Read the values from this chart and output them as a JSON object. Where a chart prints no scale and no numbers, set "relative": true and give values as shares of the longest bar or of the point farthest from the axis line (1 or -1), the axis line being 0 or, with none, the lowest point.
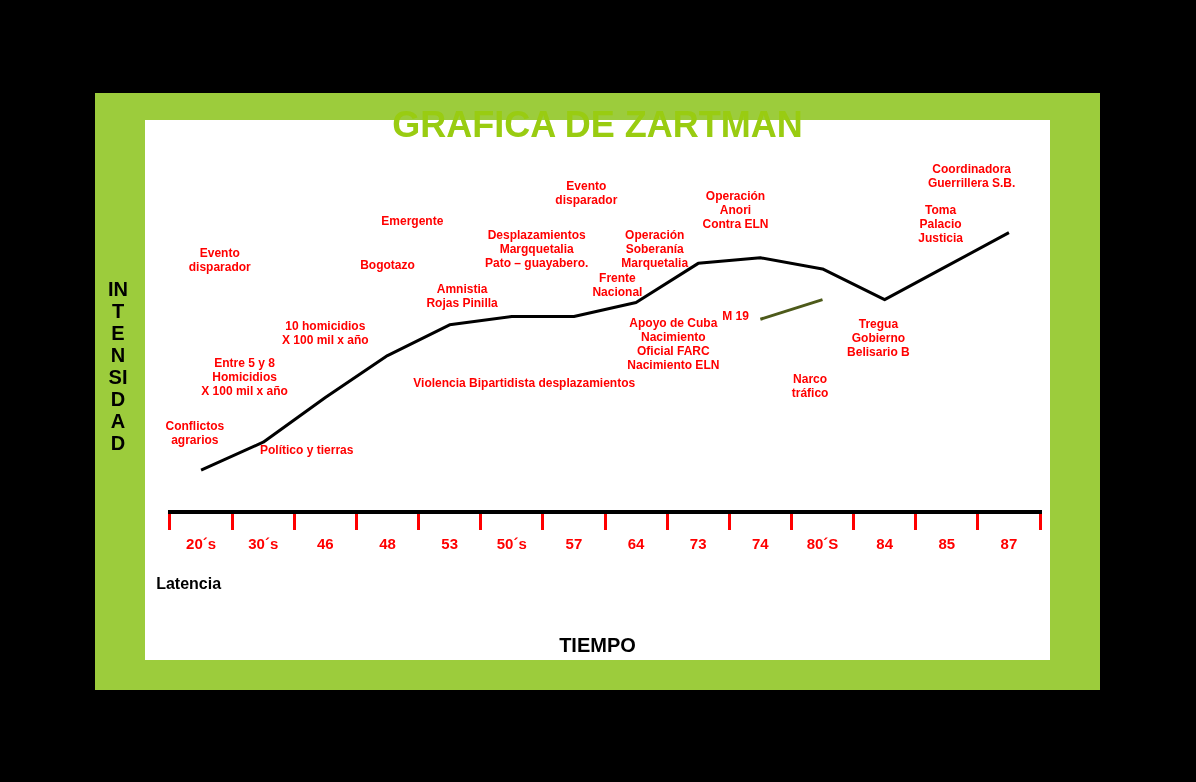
{
  "chart_data": {
    "type": "line",
    "title": "GRAFICA DE ZARTMAN",
    "xlabel": "TIEMPO",
    "ylabel": "INTENSIDAD",
    "relative": true,
    "legend": false,
    "grid": false,
    "marker": "none",
    "line_style": "solid",
    "categories": [
      "20´s",
      "30´s",
      "46",
      "48",
      "53",
      "50´s",
      "57",
      "64",
      "73",
      "74",
      "80´S",
      "84",
      "85",
      "87"
    ],
    "series": [
      {
        "color": "#000000",
        "values": [
          0.15,
          0.25,
          0.41,
          0.56,
          0.67,
          0.7,
          0.7,
          0.75,
          0.89,
          0.91,
          0.87,
          0.76,
          0.88,
          1.0
        ]
      },
      {
        "color": "#4d5a1a",
        "values": [
          null,
          null,
          null,
          null,
          null,
          null,
          null,
          null,
          null,
          0.69,
          0.76,
          null,
          null,
          null
        ]
      }
    ],
    "annotations": [
      "Latencia",
      "Conflictos\nagrarios",
      "Político y tierras",
      "Entre 5 y 8\nHomicidios\nX 100 mil x año",
      "10 homicidios\nX 100 mil x año",
      "Bogotazo",
      "Evento\ndisparador",
      "Amnistia\nRojas Pinilla",
      "Violencia Bipartidista desplazamientos",
      "Desplazamientos\nMargquetalia\nPato – guayabero.",
      "Emergente",
      "Evento\ndisparador",
      "Frente\nNacional",
      "Apoyo de Cuba\nNacimiento\nOficial FARC\nNacimiento ELN",
      "Operación\nSoberanía\nMarquetalia",
      "Operación\nAnori\nContra ELN",
      "M 19",
      "Tregua\nGobierno\nBelisario B",
      "Narco\ntráfico",
      "Toma\nPalacio\nJusticia",
      "Coordinadora\nGuerrillera S.B."
    ]
  }
}
